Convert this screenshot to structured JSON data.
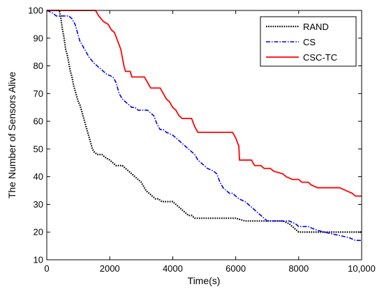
{
  "chart_data": {
    "type": "line",
    "title": "",
    "xlabel": "Time(s)",
    "ylabel": "The Number of Sensors Alive",
    "xlim": [
      0,
      10000
    ],
    "ylim": [
      10,
      100
    ],
    "x_ticks": [
      0,
      2000,
      4000,
      6000,
      8000,
      10000
    ],
    "x_tick_labels": [
      "0",
      "2000",
      "4000",
      "6000",
      "8000",
      "10,000"
    ],
    "y_ticks": [
      10,
      20,
      30,
      40,
      50,
      60,
      70,
      80,
      90,
      100
    ],
    "y_tick_labels": [
      "10",
      "20",
      "30",
      "40",
      "50",
      "60",
      "70",
      "80",
      "90",
      "100"
    ],
    "grid": false,
    "legend_position": "top-right",
    "series": [
      {
        "name": "RAND",
        "color": "#000000",
        "style": "dotted",
        "points": [
          [
            0,
            100
          ],
          [
            400,
            100
          ],
          [
            450,
            97
          ],
          [
            500,
            93
          ],
          [
            550,
            90
          ],
          [
            600,
            86
          ],
          [
            650,
            84
          ],
          [
            700,
            81
          ],
          [
            750,
            78
          ],
          [
            800,
            76
          ],
          [
            850,
            73
          ],
          [
            900,
            71
          ],
          [
            950,
            69
          ],
          [
            1000,
            67
          ],
          [
            1050,
            66
          ],
          [
            1100,
            64
          ],
          [
            1150,
            62
          ],
          [
            1200,
            60
          ],
          [
            1250,
            58
          ],
          [
            1300,
            56
          ],
          [
            1350,
            54
          ],
          [
            1400,
            52
          ],
          [
            1450,
            50
          ],
          [
            1500,
            49
          ],
          [
            1600,
            48
          ],
          [
            1750,
            48
          ],
          [
            1850,
            47
          ],
          [
            2000,
            46
          ],
          [
            2100,
            45
          ],
          [
            2200,
            44
          ],
          [
            2400,
            44
          ],
          [
            2500,
            43
          ],
          [
            2600,
            42
          ],
          [
            2700,
            41
          ],
          [
            2800,
            40
          ],
          [
            2900,
            39
          ],
          [
            3000,
            38
          ],
          [
            3050,
            37
          ],
          [
            3100,
            36
          ],
          [
            3150,
            35
          ],
          [
            3250,
            34
          ],
          [
            3350,
            33
          ],
          [
            3450,
            32
          ],
          [
            3550,
            32
          ],
          [
            3650,
            31
          ],
          [
            4000,
            31
          ],
          [
            4100,
            30
          ],
          [
            4200,
            29
          ],
          [
            4300,
            28
          ],
          [
            4400,
            27
          ],
          [
            4500,
            26
          ],
          [
            4600,
            26
          ],
          [
            4700,
            25
          ],
          [
            6000,
            25
          ],
          [
            6300,
            24
          ],
          [
            7500,
            24
          ],
          [
            7700,
            23
          ],
          [
            7800,
            22
          ],
          [
            7900,
            21
          ],
          [
            8000,
            20
          ],
          [
            10000,
            20
          ]
        ]
      },
      {
        "name": "CS",
        "color": "#0000ff",
        "style": "dashdot",
        "points": [
          [
            0,
            100
          ],
          [
            200,
            99
          ],
          [
            300,
            98
          ],
          [
            700,
            98
          ],
          [
            800,
            97
          ],
          [
            850,
            96
          ],
          [
            900,
            95
          ],
          [
            950,
            93
          ],
          [
            1000,
            91
          ],
          [
            1050,
            89
          ],
          [
            1100,
            88
          ],
          [
            1150,
            87
          ],
          [
            1200,
            86
          ],
          [
            1300,
            84
          ],
          [
            1350,
            83
          ],
          [
            1500,
            81
          ],
          [
            1600,
            80
          ],
          [
            1700,
            79
          ],
          [
            1800,
            78
          ],
          [
            1900,
            77
          ],
          [
            2100,
            76
          ],
          [
            2200,
            74
          ],
          [
            2250,
            72
          ],
          [
            2300,
            70
          ],
          [
            2400,
            68
          ],
          [
            2500,
            67
          ],
          [
            2600,
            66
          ],
          [
            2700,
            65
          ],
          [
            2800,
            65
          ],
          [
            2900,
            64
          ],
          [
            3200,
            64
          ],
          [
            3300,
            63
          ],
          [
            3400,
            62
          ],
          [
            3500,
            59
          ],
          [
            3600,
            57
          ],
          [
            3700,
            57
          ],
          [
            3800,
            56
          ],
          [
            4000,
            55
          ],
          [
            4100,
            54
          ],
          [
            4200,
            53
          ],
          [
            4300,
            52
          ],
          [
            4400,
            51
          ],
          [
            4500,
            50
          ],
          [
            4600,
            49
          ],
          [
            4700,
            48
          ],
          [
            4800,
            46
          ],
          [
            4900,
            45
          ],
          [
            5000,
            44
          ],
          [
            5100,
            43
          ],
          [
            5300,
            42
          ],
          [
            5400,
            41
          ],
          [
            5500,
            38
          ],
          [
            5600,
            36
          ],
          [
            5700,
            35
          ],
          [
            5800,
            34
          ],
          [
            5900,
            34
          ],
          [
            6000,
            33
          ],
          [
            6100,
            32
          ],
          [
            6300,
            31
          ],
          [
            6500,
            29
          ],
          [
            6600,
            28
          ],
          [
            6700,
            27
          ],
          [
            6800,
            26
          ],
          [
            6900,
            25
          ],
          [
            7000,
            24
          ],
          [
            7700,
            24
          ],
          [
            7900,
            23
          ],
          [
            8000,
            22
          ],
          [
            8300,
            22
          ],
          [
            8500,
            21
          ],
          [
            8800,
            20
          ],
          [
            9200,
            19
          ],
          [
            9600,
            18
          ],
          [
            9800,
            17
          ],
          [
            10000,
            17
          ]
        ]
      },
      {
        "name": "CSC-TC",
        "color": "#ff0000",
        "style": "solid",
        "points": [
          [
            0,
            100
          ],
          [
            1550,
            100
          ],
          [
            1650,
            98
          ],
          [
            1800,
            96
          ],
          [
            1950,
            95
          ],
          [
            2050,
            93
          ],
          [
            2150,
            92
          ],
          [
            2250,
            89
          ],
          [
            2350,
            86
          ],
          [
            2400,
            83
          ],
          [
            2450,
            80
          ],
          [
            2500,
            78
          ],
          [
            2650,
            78
          ],
          [
            2700,
            76
          ],
          [
            3100,
            76
          ],
          [
            3200,
            74
          ],
          [
            3300,
            72
          ],
          [
            3600,
            72
          ],
          [
            3700,
            70
          ],
          [
            3800,
            68
          ],
          [
            3900,
            67
          ],
          [
            4000,
            65
          ],
          [
            4100,
            64
          ],
          [
            4200,
            62
          ],
          [
            4300,
            61
          ],
          [
            4600,
            61
          ],
          [
            4700,
            58
          ],
          [
            4800,
            56
          ],
          [
            5900,
            56
          ],
          [
            6000,
            54
          ],
          [
            6100,
            51
          ],
          [
            6120,
            46
          ],
          [
            6500,
            46
          ],
          [
            6600,
            44
          ],
          [
            6800,
            44
          ],
          [
            6900,
            43
          ],
          [
            7100,
            43
          ],
          [
            7200,
            42
          ],
          [
            7500,
            41
          ],
          [
            7600,
            40
          ],
          [
            7800,
            39
          ],
          [
            8000,
            39
          ],
          [
            8100,
            38
          ],
          [
            8300,
            38
          ],
          [
            8400,
            37
          ],
          [
            8600,
            36
          ],
          [
            9300,
            36
          ],
          [
            9500,
            35
          ],
          [
            9700,
            34
          ],
          [
            9800,
            33
          ],
          [
            10000,
            33
          ]
        ]
      }
    ]
  }
}
